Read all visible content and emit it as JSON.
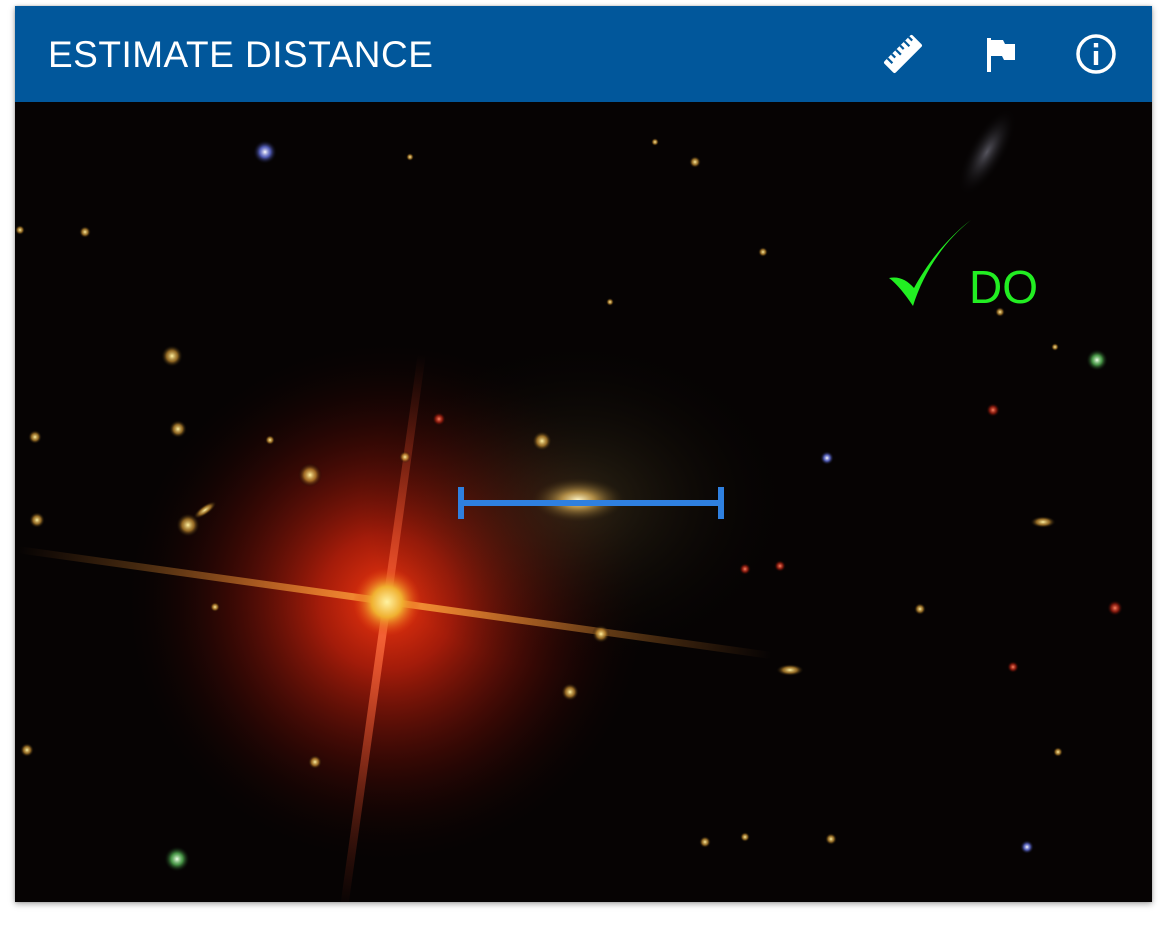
{
  "header": {
    "title": "ESTIMATE DISTANCE",
    "background_color": "#01579b",
    "tools": [
      {
        "name": "ruler-icon"
      },
      {
        "name": "flag-icon"
      },
      {
        "name": "info-icon"
      }
    ]
  },
  "image": {
    "description_icon": "galaxy-field-image"
  },
  "annotation": {
    "label": "DO",
    "icon": "checkmark-icon",
    "color": "#22ee22"
  },
  "scale_bar": {
    "color": "#2f80e0"
  }
}
